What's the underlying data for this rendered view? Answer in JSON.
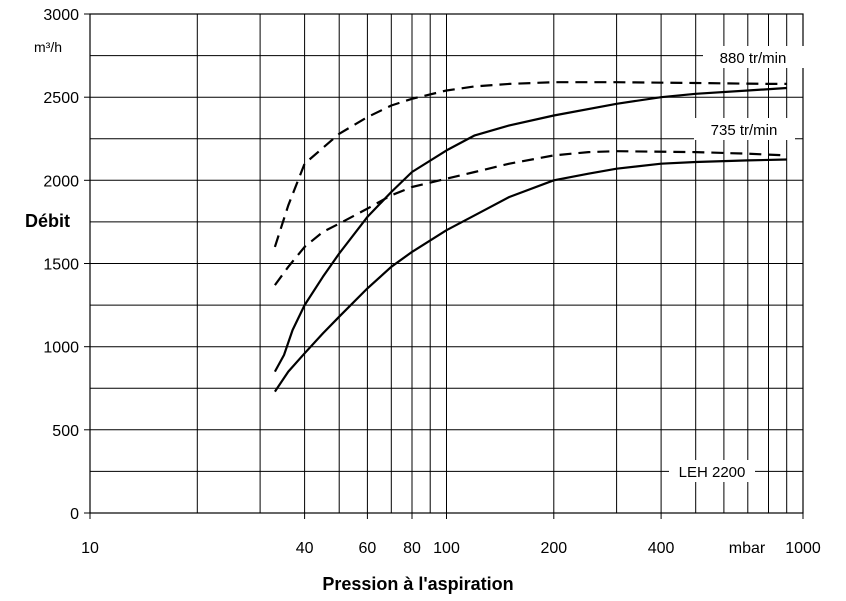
{
  "chart_data": {
    "type": "line",
    "xlabel": "Pression à l'aspiration",
    "ylabel": "Débit",
    "x_unit": "mbar",
    "y_unit": "m³/h",
    "x_scale": "log",
    "xlim": [
      10,
      1000
    ],
    "ylim": [
      0,
      3000
    ],
    "grid": true,
    "x_ticks": [
      {
        "value": 10,
        "label": "10"
      },
      {
        "value": 40,
        "label": "40"
      },
      {
        "value": 60,
        "label": "60"
      },
      {
        "value": 80,
        "label": "80"
      },
      {
        "value": 100,
        "label": "100"
      },
      {
        "value": 200,
        "label": "200"
      },
      {
        "value": 400,
        "label": "400"
      },
      {
        "value": 1000,
        "label": "1000"
      }
    ],
    "x_gridlines": [
      20,
      30,
      40,
      50,
      60,
      70,
      80,
      90,
      100,
      200,
      300,
      400,
      500,
      600,
      700,
      800,
      900
    ],
    "y_ticks": [
      {
        "value": 0,
        "label": "0"
      },
      {
        "value": 500,
        "label": "500"
      },
      {
        "value": 1000,
        "label": "1000"
      },
      {
        "value": 1500,
        "label": "1500"
      },
      {
        "value": 2000,
        "label": "2000"
      },
      {
        "value": 2500,
        "label": "2500"
      },
      {
        "value": 3000,
        "label": "3000"
      }
    ],
    "y_gridlines": [
      250,
      500,
      750,
      1000,
      1250,
      1500,
      1750,
      2000,
      2250,
      2500,
      2750
    ],
    "annotations": {
      "speed_high": "880 tr/min",
      "speed_low": "735 tr/min",
      "model": "LEH 2200"
    },
    "series": [
      {
        "id": "dashed-880",
        "style": "dashed",
        "points": [
          [
            33,
            1600
          ],
          [
            36,
            1850
          ],
          [
            40,
            2100
          ],
          [
            50,
            2280
          ],
          [
            60,
            2380
          ],
          [
            70,
            2450
          ],
          [
            80,
            2490
          ],
          [
            100,
            2540
          ],
          [
            120,
            2565
          ],
          [
            150,
            2580
          ],
          [
            200,
            2590
          ],
          [
            300,
            2590
          ],
          [
            500,
            2585
          ],
          [
            800,
            2580
          ],
          [
            900,
            2580
          ]
        ]
      },
      {
        "id": "solid-880",
        "style": "solid",
        "points": [
          [
            33,
            850
          ],
          [
            35,
            950
          ],
          [
            37,
            1100
          ],
          [
            40,
            1250
          ],
          [
            45,
            1420
          ],
          [
            50,
            1560
          ],
          [
            60,
            1780
          ],
          [
            70,
            1930
          ],
          [
            80,
            2050
          ],
          [
            100,
            2180
          ],
          [
            120,
            2270
          ],
          [
            150,
            2330
          ],
          [
            200,
            2390
          ],
          [
            300,
            2460
          ],
          [
            400,
            2500
          ],
          [
            500,
            2520
          ],
          [
            700,
            2540
          ],
          [
            900,
            2555
          ]
        ]
      },
      {
        "id": "dashed-735",
        "style": "dashed",
        "points": [
          [
            33,
            1370
          ],
          [
            36,
            1480
          ],
          [
            40,
            1600
          ],
          [
            45,
            1690
          ],
          [
            50,
            1740
          ],
          [
            60,
            1830
          ],
          [
            70,
            1910
          ],
          [
            80,
            1960
          ],
          [
            100,
            2010
          ],
          [
            120,
            2050
          ],
          [
            150,
            2100
          ],
          [
            200,
            2150
          ],
          [
            250,
            2170
          ],
          [
            300,
            2175
          ],
          [
            500,
            2170
          ],
          [
            700,
            2160
          ],
          [
            900,
            2150
          ]
        ]
      },
      {
        "id": "solid-735",
        "style": "solid",
        "points": [
          [
            33,
            730
          ],
          [
            36,
            850
          ],
          [
            40,
            960
          ],
          [
            45,
            1080
          ],
          [
            50,
            1180
          ],
          [
            60,
            1350
          ],
          [
            70,
            1480
          ],
          [
            80,
            1570
          ],
          [
            100,
            1700
          ],
          [
            120,
            1790
          ],
          [
            150,
            1900
          ],
          [
            200,
            2000
          ],
          [
            250,
            2040
          ],
          [
            300,
            2070
          ],
          [
            400,
            2100
          ],
          [
            500,
            2110
          ],
          [
            700,
            2120
          ],
          [
            900,
            2125
          ]
        ]
      }
    ]
  }
}
